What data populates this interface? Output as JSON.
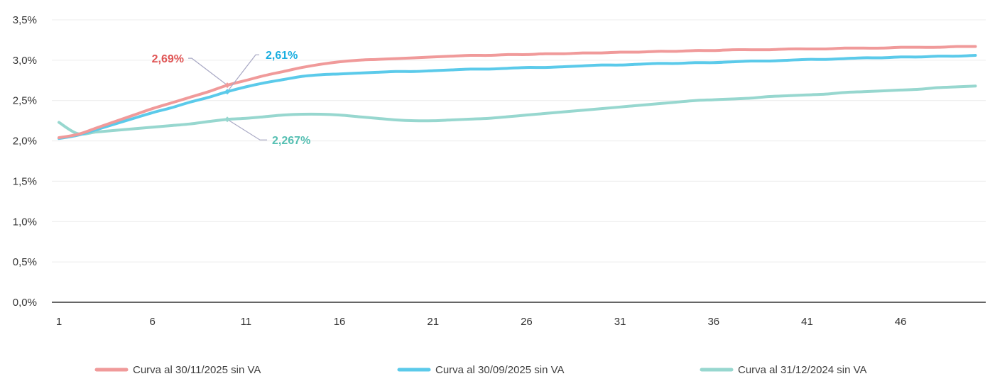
{
  "chart_data": {
    "type": "line",
    "title": "",
    "xlabel": "",
    "ylabel": "",
    "xlim": [
      1,
      50
    ],
    "ylim": [
      0,
      3.5
    ],
    "x_ticks": [
      1,
      6,
      11,
      16,
      21,
      26,
      31,
      36,
      41,
      46
    ],
    "x_tick_labels": [
      "1",
      "6",
      "11",
      "16",
      "21",
      "26",
      "31",
      "36",
      "41",
      "46"
    ],
    "y_ticks": [
      0,
      0.5,
      1.0,
      1.5,
      2.0,
      2.5,
      3.0,
      3.5
    ],
    "y_tick_labels": [
      "0,0%",
      "0,5%",
      "1,0%",
      "1,5%",
      "2,0%",
      "2,5%",
      "3,0%",
      "3,5%"
    ],
    "grid": "horizontal",
    "legend_position": "bottom",
    "x": [
      1,
      2,
      3,
      4,
      5,
      6,
      7,
      8,
      9,
      10,
      11,
      12,
      13,
      14,
      15,
      16,
      17,
      18,
      19,
      20,
      21,
      22,
      23,
      24,
      25,
      26,
      27,
      28,
      29,
      30,
      31,
      32,
      33,
      34,
      35,
      36,
      37,
      38,
      39,
      40,
      41,
      42,
      43,
      44,
      45,
      46,
      47,
      48,
      49,
      50
    ],
    "series": [
      {
        "name": "Curva al 30/11/2025 sin VA",
        "color": "#f09a9a",
        "values": [
          2.04,
          2.08,
          2.16,
          2.24,
          2.32,
          2.4,
          2.47,
          2.54,
          2.61,
          2.69,
          2.75,
          2.81,
          2.86,
          2.91,
          2.95,
          2.98,
          3.0,
          3.01,
          3.02,
          3.03,
          3.04,
          3.05,
          3.06,
          3.06,
          3.07,
          3.07,
          3.08,
          3.08,
          3.09,
          3.09,
          3.1,
          3.1,
          3.11,
          3.11,
          3.12,
          3.12,
          3.13,
          3.13,
          3.13,
          3.14,
          3.14,
          3.14,
          3.15,
          3.15,
          3.15,
          3.16,
          3.16,
          3.16,
          3.17,
          3.17
        ]
      },
      {
        "name": "Curva al 30/09/2025 sin VA",
        "color": "#5bcaea",
        "values": [
          2.03,
          2.07,
          2.14,
          2.21,
          2.28,
          2.35,
          2.41,
          2.48,
          2.54,
          2.61,
          2.67,
          2.72,
          2.76,
          2.8,
          2.82,
          2.83,
          2.84,
          2.85,
          2.86,
          2.86,
          2.87,
          2.88,
          2.89,
          2.89,
          2.9,
          2.91,
          2.91,
          2.92,
          2.93,
          2.94,
          2.94,
          2.95,
          2.96,
          2.96,
          2.97,
          2.97,
          2.98,
          2.99,
          2.99,
          3.0,
          3.01,
          3.01,
          3.02,
          3.03,
          3.03,
          3.04,
          3.04,
          3.05,
          3.05,
          3.06
        ]
      },
      {
        "name": "Curva al 31/12/2024 sin VA",
        "color": "#97d7cf",
        "values": [
          2.23,
          2.09,
          2.11,
          2.13,
          2.15,
          2.17,
          2.19,
          2.21,
          2.24,
          2.267,
          2.28,
          2.3,
          2.32,
          2.33,
          2.33,
          2.32,
          2.3,
          2.28,
          2.26,
          2.25,
          2.25,
          2.26,
          2.27,
          2.28,
          2.3,
          2.32,
          2.34,
          2.36,
          2.38,
          2.4,
          2.42,
          2.44,
          2.46,
          2.48,
          2.5,
          2.51,
          2.52,
          2.53,
          2.55,
          2.56,
          2.57,
          2.58,
          2.6,
          2.61,
          2.62,
          2.63,
          2.64,
          2.66,
          2.67,
          2.68
        ]
      }
    ],
    "annotations": [
      {
        "series": 0,
        "x": 10,
        "y": 2.69,
        "text": "2,69%",
        "color": "#e05555",
        "side": "left"
      },
      {
        "series": 1,
        "x": 10,
        "y": 2.61,
        "text": "2,61%",
        "color": "#1aaee0",
        "side": "right-up"
      },
      {
        "series": 2,
        "x": 10,
        "y": 2.267,
        "text": "2,267%",
        "color": "#55bfb2",
        "side": "right-down"
      }
    ]
  }
}
